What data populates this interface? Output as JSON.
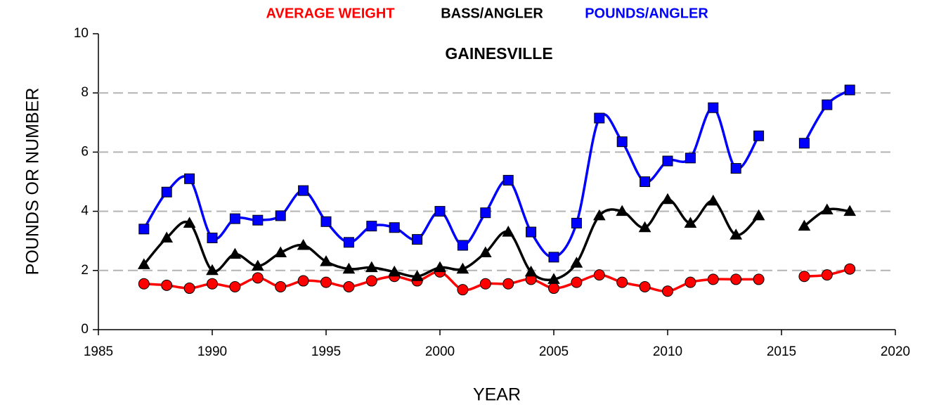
{
  "chart_data": {
    "type": "line",
    "title": "GAINESVILLE",
    "x_label": "YEAR",
    "y_label": "POUNDS OR NUMBER",
    "x": [
      1987,
      1988,
      1989,
      1990,
      1991,
      1992,
      1993,
      1994,
      1995,
      1996,
      1997,
      1998,
      1999,
      2000,
      2001,
      2002,
      2003,
      2004,
      2005,
      2006,
      2007,
      2008,
      2009,
      2010,
      2011,
      2012,
      2013,
      2014,
      2015,
      2016,
      2017,
      2018
    ],
    "series": [
      {
        "name": "AVERAGE WEIGHT",
        "color": "#ff0000",
        "marker": "circle",
        "values": [
          1.55,
          1.5,
          1.4,
          1.55,
          1.45,
          1.75,
          1.45,
          1.65,
          1.6,
          1.45,
          1.65,
          1.8,
          1.65,
          1.95,
          1.35,
          1.55,
          1.55,
          1.7,
          1.4,
          1.6,
          1.85,
          1.6,
          1.45,
          1.3,
          1.6,
          1.7,
          1.7,
          1.7,
          null,
          1.8,
          1.85,
          2.05
        ]
      },
      {
        "name": "BASS/ANGLER",
        "color": "#000000",
        "marker": "triangle",
        "values": [
          2.2,
          3.1,
          3.6,
          2.0,
          2.55,
          2.15,
          2.6,
          2.85,
          2.3,
          2.05,
          2.1,
          1.95,
          1.8,
          2.1,
          2.05,
          2.6,
          3.3,
          1.95,
          1.7,
          2.25,
          3.85,
          4.0,
          3.45,
          4.4,
          3.6,
          4.35,
          3.2,
          3.85,
          null,
          3.5,
          4.05,
          4.0
        ]
      },
      {
        "name": "POUNDS/ANGLER",
        "color": "#0000ff",
        "marker": "square",
        "values": [
          3.4,
          4.65,
          5.1,
          3.1,
          3.75,
          3.7,
          3.85,
          4.7,
          3.65,
          2.95,
          3.5,
          3.45,
          3.05,
          4.0,
          2.85,
          3.95,
          5.05,
          3.3,
          2.45,
          3.6,
          7.15,
          6.35,
          5.0,
          5.7,
          5.8,
          7.5,
          5.45,
          6.55,
          null,
          6.3,
          7.6,
          8.1
        ]
      }
    ],
    "xlim": [
      1985,
      2020
    ],
    "xticks": [
      1985,
      1990,
      1995,
      2000,
      2005,
      2010,
      2015,
      2020
    ],
    "ylim": [
      0,
      10
    ],
    "yticks": [
      0,
      2,
      4,
      6,
      8,
      10
    ],
    "grid": true,
    "smooth": true
  }
}
